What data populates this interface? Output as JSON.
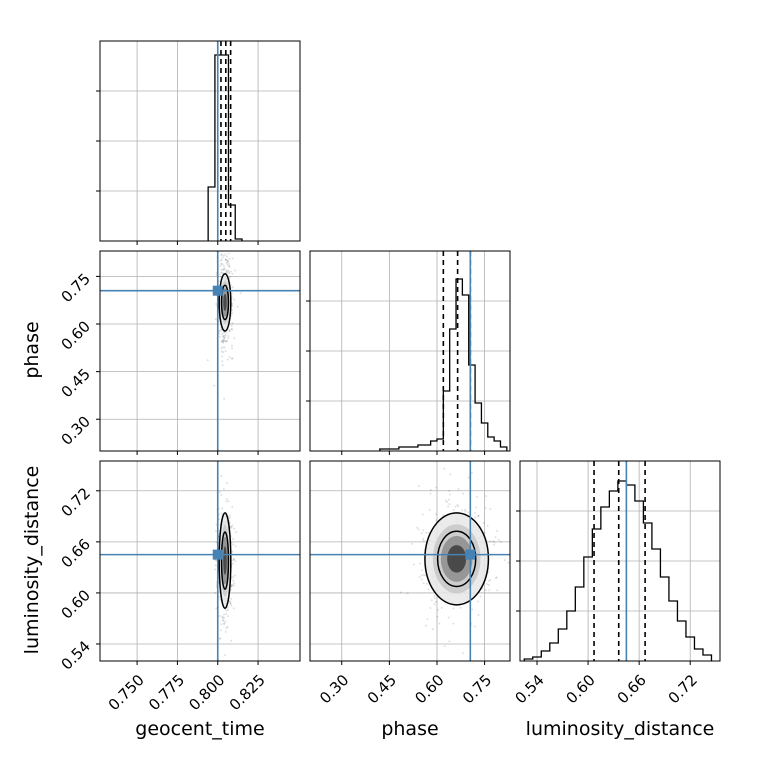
{
  "chart_data": {
    "type": "corner",
    "parameters": [
      "geocent_time",
      "phase",
      "luminosity_distance"
    ],
    "axis_labels": {
      "geocent_time": "geocent_time",
      "phase": "phase",
      "luminosity_distance": "luminosity_distance"
    },
    "truths": {
      "geocent_time": 0.8,
      "phase": 0.705,
      "luminosity_distance": 0.645
    },
    "ranges": {
      "geocent_time": [
        0.727,
        0.851
      ],
      "phase": [
        0.2,
        0.83
      ],
      "luminosity_distance": [
        0.52,
        0.755
      ]
    },
    "ticks": {
      "geocent_time": [
        0.75,
        0.775,
        0.8,
        0.825
      ],
      "phase": [
        0.3,
        0.45,
        0.6,
        0.75
      ],
      "luminosity_distance": [
        0.54,
        0.6,
        0.66,
        0.72
      ]
    },
    "tick_labels": {
      "geocent_time": [
        "0.750",
        "0.775",
        "0.800",
        "0.825"
      ],
      "phase": [
        "0.30",
        "0.45",
        "0.60",
        "0.75"
      ],
      "luminosity_distance": [
        "0.54",
        "0.60",
        "0.66",
        "0.72"
      ]
    },
    "quantiles": {
      "geocent_time": [
        0.802,
        0.805,
        0.808
      ],
      "phase": [
        0.62,
        0.665,
        0.705
      ],
      "luminosity_distance": [
        0.607,
        0.636,
        0.667
      ]
    },
    "histograms": {
      "geocent_time": {
        "edges": [
          0.79405,
          0.79825,
          0.80245,
          0.80665,
          0.81085,
          0.81505
        ],
        "counts": [
          0.27,
          0.93,
          0.93,
          0.18,
          0.01
        ]
      },
      "phase": {
        "edges": [
          0.42,
          0.44,
          0.46,
          0.48,
          0.5,
          0.52,
          0.54,
          0.56,
          0.58,
          0.6,
          0.62,
          0.64,
          0.66,
          0.68,
          0.7,
          0.72,
          0.74,
          0.76,
          0.78,
          0.8,
          0.82
        ],
        "counts": [
          0.01,
          0.01,
          0.01,
          0.02,
          0.02,
          0.02,
          0.03,
          0.03,
          0.05,
          0.06,
          0.3,
          0.61,
          0.86,
          0.78,
          0.43,
          0.24,
          0.14,
          0.07,
          0.05,
          0.02
        ]
      },
      "luminosity_distance": {
        "edges": [
          0.525,
          0.535,
          0.545,
          0.555,
          0.565,
          0.575,
          0.585,
          0.595,
          0.605,
          0.615,
          0.625,
          0.635,
          0.645,
          0.655,
          0.665,
          0.675,
          0.685,
          0.695,
          0.705,
          0.715,
          0.725,
          0.735,
          0.745
        ],
        "counts": [
          0.01,
          0.02,
          0.05,
          0.09,
          0.16,
          0.25,
          0.37,
          0.52,
          0.66,
          0.77,
          0.85,
          0.9,
          0.88,
          0.8,
          0.69,
          0.56,
          0.42,
          0.3,
          0.2,
          0.12,
          0.06,
          0.03
        ]
      }
    },
    "panels_2d": [
      {
        "x": "geocent_time",
        "y": "phase",
        "center": [
          0.8045,
          0.668
        ],
        "sigma": [
          0.0018,
          0.045
        ],
        "scatter_sigma": [
          0.0025,
          0.075
        ]
      },
      {
        "x": "geocent_time",
        "y": "luminosity_distance",
        "center": [
          0.8045,
          0.638
        ],
        "sigma": [
          0.0018,
          0.028
        ],
        "scatter_sigma": [
          0.0025,
          0.035
        ]
      },
      {
        "x": "phase",
        "y": "luminosity_distance",
        "center": [
          0.662,
          0.64
        ],
        "sigma": [
          0.05,
          0.027
        ],
        "scatter_sigma": [
          0.06,
          0.035
        ]
      }
    ],
    "colors": {
      "truth": "#4682b4",
      "histogram": "#000000",
      "grid": "#b0b0b0"
    },
    "grid": true
  }
}
